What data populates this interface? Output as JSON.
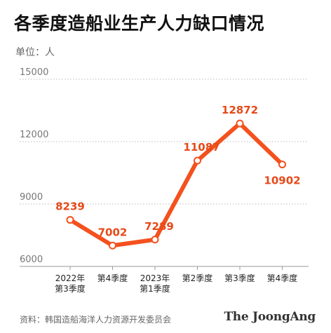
{
  "title": "各季度造船业生产人力缺口情况",
  "unit_label": "单位：人",
  "source": "资料：韩国造船海洋人力资源开发委员会",
  "brand": "The JoongAng",
  "colors": {
    "line": "#f4511e",
    "label": "#e64a19",
    "grid": "#bbbbbb",
    "axis": "#999999"
  },
  "chart_data": {
    "type": "line",
    "title": "各季度造船业生产人力缺口情况",
    "ylabel": "单位：人",
    "xlabel": "",
    "categories": [
      [
        "2022年",
        "第3季度"
      ],
      [
        "第4季度"
      ],
      [
        "2023年",
        "第1季度"
      ],
      [
        "第2季度"
      ],
      [
        "第3季度"
      ],
      [
        "第4季度"
      ]
    ],
    "values": [
      8239,
      7002,
      7289,
      11087,
      12872,
      10902
    ],
    "yticks": [
      6000,
      9000,
      12000,
      15000
    ],
    "ylim": [
      6000,
      15000
    ],
    "grid": "dotted horizontal",
    "legend": "none"
  }
}
